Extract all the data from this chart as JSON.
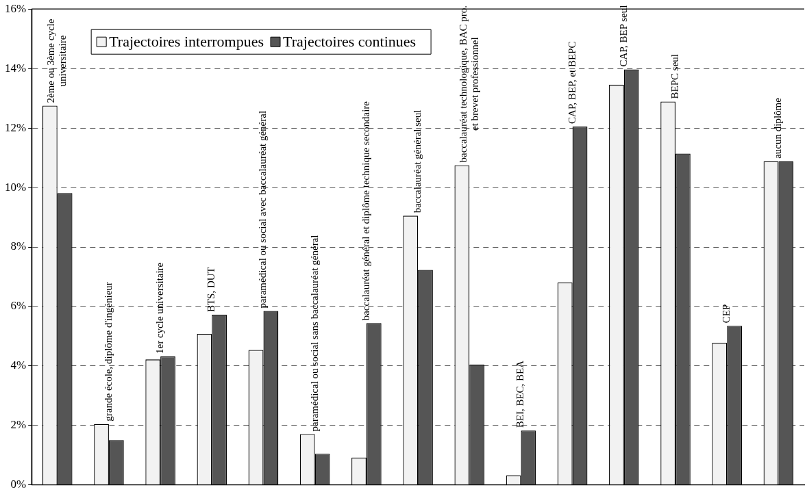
{
  "chart_data": {
    "type": "bar",
    "categories": [
      "2ème ou 3ème cycle universitaire",
      "grande école, diplôme d'ingénieur",
      "1er cycle universitaire",
      "BTS, DUT",
      "paramédical ou social avec baccalauréat général",
      "paramédical ou social sans baccalauréat général",
      "baccalauréat général et diplôme technique secondaire",
      "baccalauréat général seul",
      "baccalauréat technologique, BAC pro. et brevet professionnel",
      "BEI, BEC, BEA",
      "CAP, BEP, et BEPC",
      "CAP, BEP seul",
      "BEPC seul",
      "CEP",
      "aucun diplôme"
    ],
    "series": [
      {
        "name": "Trajectoires interrompues",
        "color": "#f2f2f2",
        "values": [
          12.75,
          2.05,
          4.22,
          5.08,
          4.54,
          1.71,
          0.92,
          9.05,
          10.75,
          0.32,
          6.81,
          13.46,
          12.89,
          4.78,
          10.88
        ]
      },
      {
        "name": "Trajectoires continues",
        "color": "#555555",
        "values": [
          9.81,
          1.51,
          4.32,
          5.72,
          5.85,
          1.05,
          5.44,
          7.23,
          4.05,
          1.83,
          12.05,
          13.97,
          11.14,
          5.35,
          10.88
        ]
      }
    ],
    "ylim": [
      0,
      16
    ],
    "yticks": [
      {
        "value": 0,
        "label": "0%"
      },
      {
        "value": 2,
        "label": "2%"
      },
      {
        "value": 4,
        "label": "4%"
      },
      {
        "value": 6,
        "label": "6%"
      },
      {
        "value": 8,
        "label": "8%"
      },
      {
        "value": 10,
        "label": "10%"
      },
      {
        "value": 12,
        "label": "12%"
      },
      {
        "value": 14,
        "label": "14%"
      },
      {
        "value": 16,
        "label": "16%"
      }
    ],
    "grid": "y",
    "legend": "top left",
    "tick_labels": "y"
  }
}
